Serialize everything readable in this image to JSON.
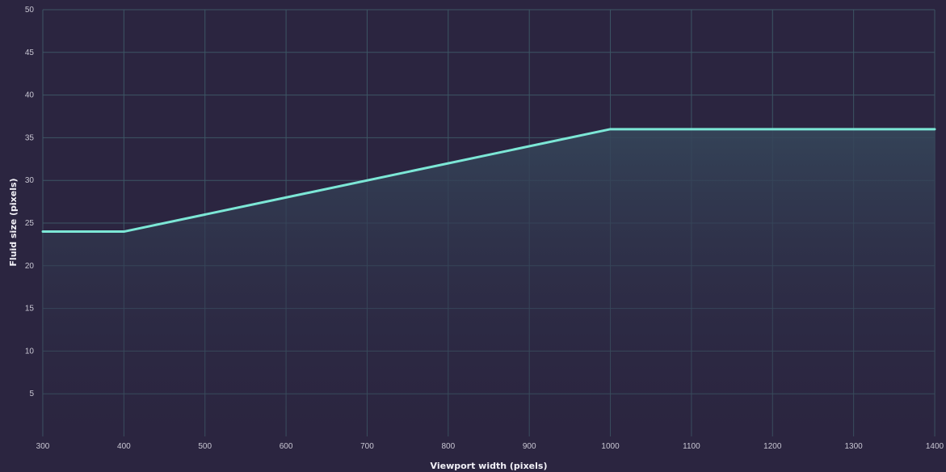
{
  "chart_data": {
    "type": "area",
    "xlabel": "Viewport width (pixels)",
    "ylabel": "Fluid size (pixels)",
    "xlim": [
      300,
      1400
    ],
    "ylim": [
      0,
      50
    ],
    "x_ticks": [
      300,
      400,
      500,
      600,
      700,
      800,
      900,
      1000,
      1100,
      1200,
      1300,
      1400
    ],
    "y_ticks": [
      5,
      10,
      15,
      20,
      25,
      30,
      35,
      40,
      45,
      50
    ],
    "grid": true,
    "series": [
      {
        "x": [
          300,
          400,
          1000,
          1400
        ],
        "y": [
          24,
          24,
          36,
          36
        ]
      }
    ],
    "colors": {
      "background": "#2b2540",
      "grid": "#3d5866",
      "line": "#7ce7d6",
      "fill_top": "#35465a",
      "fill_bottom": "#2b2540"
    }
  }
}
